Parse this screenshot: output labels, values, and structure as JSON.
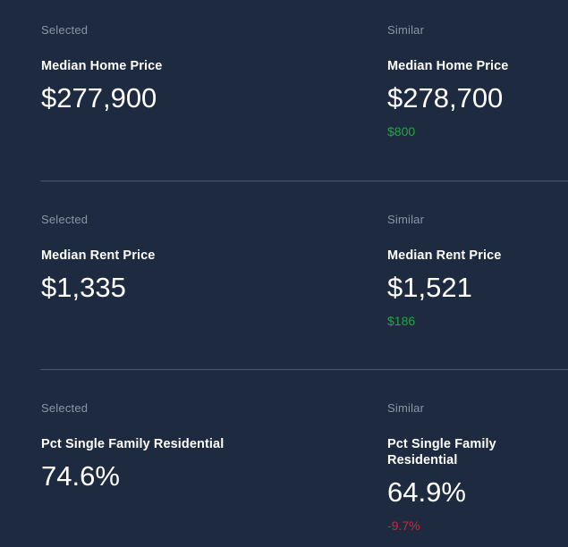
{
  "colors": {
    "background": "#1d2a3f",
    "label_gray": "#8b95a5",
    "text_white": "#ffffff",
    "positive_green": "#26a444",
    "negative_red": "#c62b3a",
    "divider": "#46556e"
  },
  "metrics": [
    {
      "selected": {
        "group_label": "Selected",
        "name": "Median Home Price",
        "value": "$277,900"
      },
      "similar": {
        "group_label": "Similar",
        "name": "Median Home Price",
        "value": "$278,700",
        "delta": "$800",
        "delta_direction": "positive"
      }
    },
    {
      "selected": {
        "group_label": "Selected",
        "name": "Median Rent Price",
        "value": "$1,335"
      },
      "similar": {
        "group_label": "Similar",
        "name": "Median Rent Price",
        "value": "$1,521",
        "delta": "$186",
        "delta_direction": "positive"
      }
    },
    {
      "selected": {
        "group_label": "Selected",
        "name": "Pct Single Family Residential",
        "value": "74.6%"
      },
      "similar": {
        "group_label": "Similar",
        "name": "Pct Single Family Residential",
        "value": "64.9%",
        "delta": "-9.7%",
        "delta_direction": "negative"
      }
    }
  ]
}
